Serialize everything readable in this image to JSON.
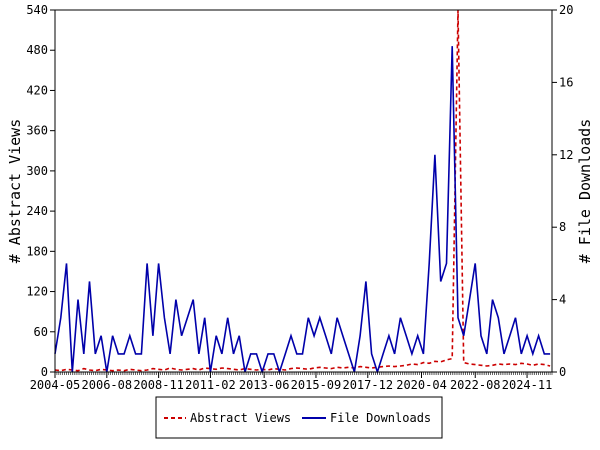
{
  "chart_data": {
    "type": "line",
    "title": "",
    "xlabel": "",
    "ylabel_left": "# Abstract Views",
    "ylabel_right": "# File Downloads",
    "ylim_left": [
      0,
      540
    ],
    "ylim_right": [
      0,
      20
    ],
    "yticks_left": [
      0,
      60,
      120,
      180,
      240,
      300,
      360,
      420,
      480,
      540
    ],
    "yticks_right": [
      0,
      4,
      8,
      12,
      16,
      20
    ],
    "x_tick_labels": [
      "2004-05",
      "2006-08",
      "2008-11",
      "2011-02",
      "2013-06",
      "2015-09",
      "2017-12",
      "2020-04",
      "2022-08",
      "2024-11"
    ],
    "x_range_months": [
      "2004-05",
      "2025-12"
    ],
    "legend_placement": "bottom-center",
    "grid": false,
    "series": [
      {
        "name": "Abstract Views",
        "axis": "left",
        "color": "#cc0000",
        "dash": "dashed",
        "values_by_year_quarterly": {
          "2004": [
            2,
            3,
            2,
            4
          ],
          "2005": [
            3,
            2,
            5,
            3
          ],
          "2006": [
            2,
            4,
            3,
            2
          ],
          "2007": [
            3,
            2,
            4,
            3
          ],
          "2008": [
            2,
            3,
            5,
            4
          ],
          "2009": [
            3,
            6,
            4,
            3
          ],
          "2010": [
            4,
            5,
            3,
            6
          ],
          "2011": [
            5,
            4,
            6,
            5
          ],
          "2012": [
            4,
            3,
            5,
            4
          ],
          "2013": [
            3,
            4,
            3,
            5
          ],
          "2014": [
            4,
            3,
            5,
            6
          ],
          "2015": [
            5,
            4,
            6,
            7
          ],
          "2016": [
            6,
            5,
            7,
            6
          ],
          "2017": [
            7,
            6,
            8,
            7
          ],
          "2018": [
            6,
            7,
            8,
            9
          ],
          "2019": [
            8,
            9,
            10,
            12
          ],
          "2020": [
            11,
            14,
            13,
            16
          ],
          "2021": [
            15,
            18,
            20,
            540
          ],
          "2022": [
            14,
            12,
            11,
            10
          ],
          "2023": [
            9,
            10,
            12,
            11
          ],
          "2024": [
            12,
            11,
            13,
            12
          ],
          "2025": [
            10,
            12,
            11,
            9
          ]
        }
      },
      {
        "name": "File Downloads",
        "axis": "right",
        "color": "#0000aa",
        "dash": "solid",
        "values_by_year_quarterly": {
          "2004": [
            1,
            1,
            3,
            6
          ],
          "2005": [
            0,
            4,
            1,
            5
          ],
          "2006": [
            1,
            2,
            0,
            2
          ],
          "2007": [
            1,
            1,
            2,
            1
          ],
          "2008": [
            1,
            6,
            2,
            6
          ],
          "2009": [
            3,
            1,
            4,
            2
          ],
          "2010": [
            3,
            4,
            1,
            3
          ],
          "2011": [
            0,
            2,
            1,
            3
          ],
          "2012": [
            1,
            2,
            0,
            1
          ],
          "2013": [
            1,
            0,
            1,
            1
          ],
          "2014": [
            0,
            1,
            2,
            1
          ],
          "2015": [
            1,
            3,
            2,
            3
          ],
          "2016": [
            2,
            1,
            3,
            2
          ],
          "2017": [
            1,
            0,
            2,
            5
          ],
          "2018": [
            1,
            0,
            1,
            2
          ],
          "2019": [
            1,
            3,
            2,
            1
          ],
          "2020": [
            2,
            1,
            6,
            12
          ],
          "2021": [
            5,
            6,
            18,
            3
          ],
          "2022": [
            2,
            4,
            6,
            2
          ],
          "2023": [
            1,
            4,
            3,
            1
          ],
          "2024": [
            2,
            3,
            1,
            2
          ],
          "2025": [
            1,
            2,
            1,
            1
          ]
        }
      }
    ]
  }
}
